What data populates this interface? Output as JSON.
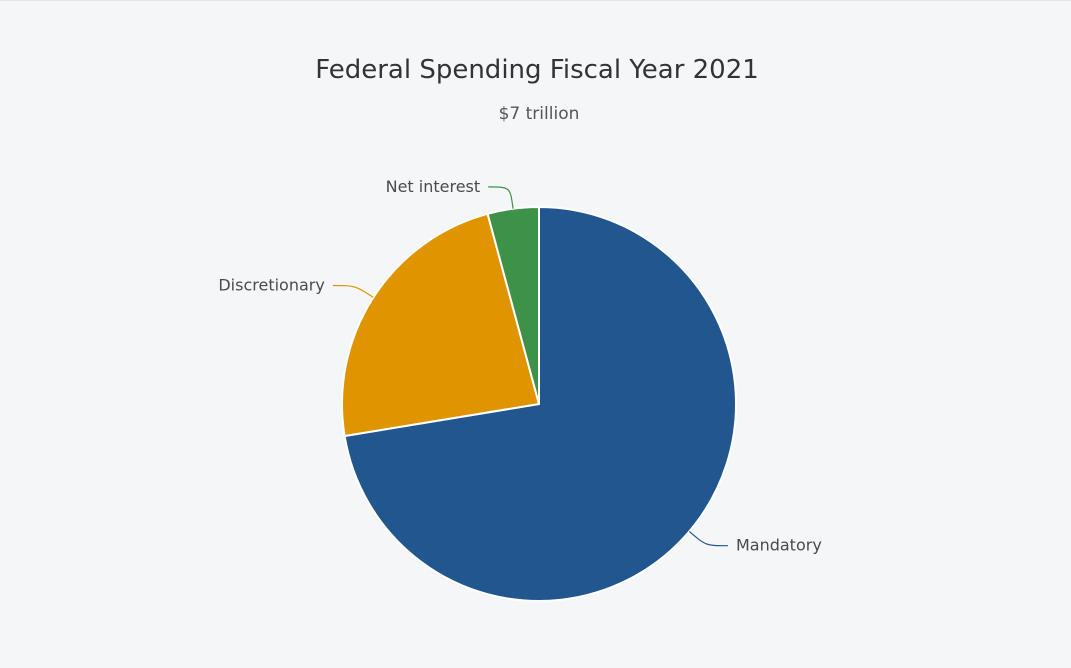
{
  "chart_data": {
    "type": "pie",
    "title": "Federal Spending Fiscal Year 2021",
    "subtitle": "$7 trillion",
    "categories": [
      "Mandatory",
      "Discretionary",
      "Net interest"
    ],
    "values": [
      72.4,
      23.4,
      4.2
    ],
    "colors": [
      "#22568f",
      "#e09400",
      "#3e9148"
    ],
    "legend": "none"
  }
}
